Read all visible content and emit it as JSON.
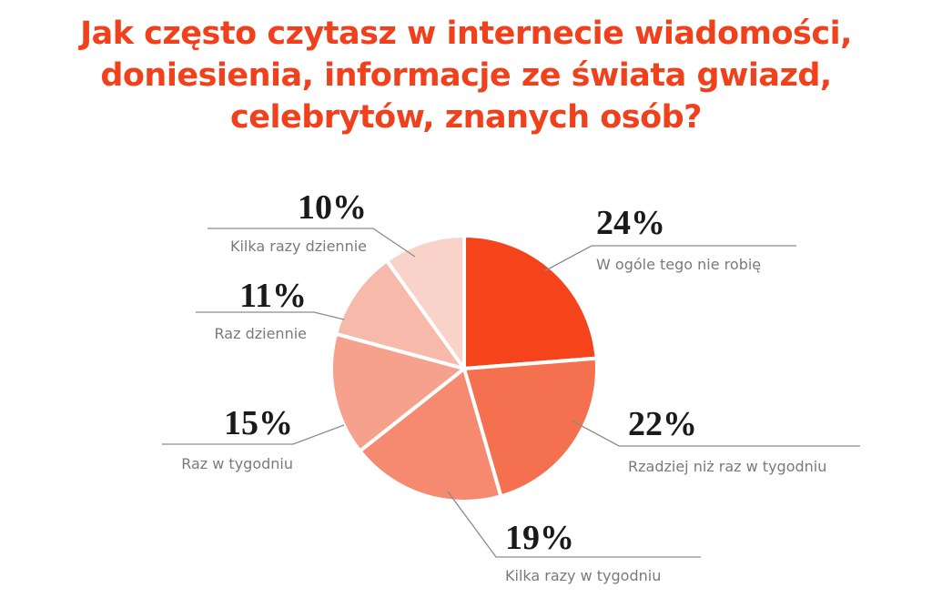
{
  "colors": {
    "title": "#f0401c",
    "leader": "#8c8c8c",
    "slices": [
      "#f5431c",
      "#f5704f",
      "#f58a70",
      "#f5a18c",
      "#f7b9a9",
      "#f9d3c9"
    ]
  },
  "chart_data": {
    "type": "pie",
    "title_lines": [
      "Jak często czytasz w internecie wiadomości,",
      "doniesienia, informacje ze świata gwiazd,",
      "celebrytów, znanych osób?"
    ],
    "start_angle": "12 o'clock",
    "direction": "clockwise",
    "slices": [
      {
        "label": "W ogóle tego nie robię",
        "value": 24,
        "display": "24%"
      },
      {
        "label": "Rzadziej niż raz w tygodniu",
        "value": 22,
        "display": "22%"
      },
      {
        "label": "Kilka razy w tygodniu",
        "value": 19,
        "display": "19%"
      },
      {
        "label": "Raz w tygodniu",
        "value": 15,
        "display": "15%"
      },
      {
        "label": "Raz dziennie",
        "value": 11,
        "display": "11%"
      },
      {
        "label": "Kilka razy dziennie",
        "value": 10,
        "display": "10%"
      }
    ]
  }
}
